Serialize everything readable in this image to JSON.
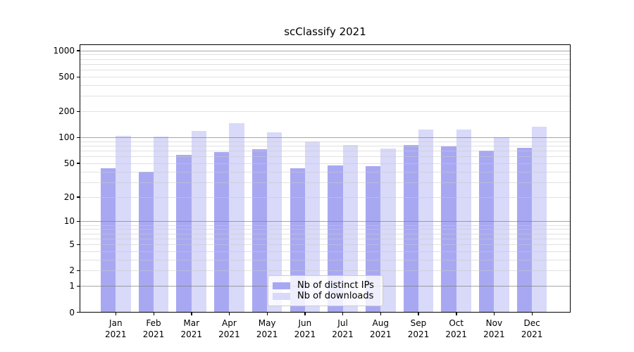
{
  "title": "scClassify 2021",
  "colors": {
    "bar_distinct_ips": "#a8a8f2",
    "bar_downloads": "#d9d9f9",
    "grid_major": "#b0b0b0",
    "grid_minor": "#e8e8e8",
    "axis": "#000000",
    "legend_border": "#cccccc"
  },
  "chart_data": {
    "type": "bar",
    "title": "scClassify 2021",
    "xlabel": "",
    "ylabel": "",
    "y_scale": "log1p",
    "ylim": [
      0,
      1180
    ],
    "grid": true,
    "legend_position": "lower center",
    "y_ticks": [
      0,
      1,
      2,
      5,
      10,
      20,
      50,
      100,
      200,
      500,
      1000
    ],
    "categories": [
      "Jan\n2021",
      "Feb\n2021",
      "Mar\n2021",
      "Apr\n2021",
      "May\n2021",
      "Jun\n2021",
      "Jul\n2021",
      "Aug\n2021",
      "Sep\n2021",
      "Oct\n2021",
      "Nov\n2021",
      "Dec\n2021"
    ],
    "series": [
      {
        "name": "Nb of distinct IPs",
        "key": "ips",
        "color": "#a8a8f2",
        "values": [
          44,
          40,
          63,
          68,
          73,
          44,
          47,
          46,
          81,
          79,
          70,
          76
        ]
      },
      {
        "name": "Nb of downloads",
        "key": "downloads",
        "color": "#d9d9f9",
        "values": [
          104,
          102,
          118,
          146,
          115,
          90,
          82,
          74,
          123,
          124,
          101,
          132
        ]
      }
    ]
  }
}
